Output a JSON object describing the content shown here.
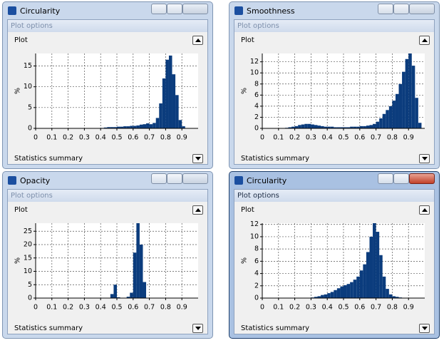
{
  "windows": [
    {
      "title": "Circularity",
      "options": "Plot options",
      "panel": "Plot",
      "footer": "Statistics summary"
    },
    {
      "title": "Smoothness",
      "options": "Plot options",
      "panel": "Plot",
      "footer": "Statistics summary"
    },
    {
      "title": "Opacity",
      "options": "Plot options",
      "panel": "Plot",
      "footer": "Statistics summary"
    },
    {
      "title": "Circularity",
      "options": "Plot options",
      "panel": "Plot",
      "footer": "Statistics summary"
    }
  ],
  "chart_data": [
    {
      "type": "histogram",
      "ylabel": "%",
      "color": "#0b3c7d",
      "grid": true,
      "xlim": [
        0,
        1
      ],
      "ylim": [
        0,
        18
      ],
      "xticks": [
        0,
        0.1,
        0.2,
        0.3,
        0.4,
        0.5,
        0.6,
        0.7,
        0.8,
        0.9
      ],
      "yticks": [
        0,
        5,
        10,
        15
      ],
      "bins": [
        0.4,
        0.42,
        0.44,
        0.46,
        0.48,
        0.5,
        0.52,
        0.54,
        0.56,
        0.58,
        0.6,
        0.62,
        0.64,
        0.66,
        0.68,
        0.7,
        0.72,
        0.74,
        0.76,
        0.78,
        0.8,
        0.82,
        0.84,
        0.86,
        0.88,
        0.9,
        0.92
      ],
      "counts": [
        0.1,
        0.2,
        0.3,
        0.3,
        0.3,
        0.4,
        0.4,
        0.5,
        0.5,
        0.6,
        0.6,
        0.7,
        0.9,
        1.0,
        1.2,
        1.0,
        1.3,
        2.5,
        6,
        12,
        16.5,
        17.5,
        13,
        8,
        2,
        0.5
      ]
    },
    {
      "type": "histogram",
      "ylabel": "%",
      "color": "#0b3c7d",
      "grid": true,
      "xlim": [
        0,
        1
      ],
      "ylim": [
        0,
        13.5
      ],
      "xticks": [
        0,
        0.1,
        0.2,
        0.3,
        0.4,
        0.5,
        0.6,
        0.7,
        0.8,
        0.9
      ],
      "yticks": [
        0,
        2,
        4,
        6,
        8,
        10,
        12
      ],
      "bins": [
        0.14,
        0.16,
        0.18,
        0.2,
        0.22,
        0.24,
        0.26,
        0.28,
        0.3,
        0.32,
        0.34,
        0.36,
        0.38,
        0.4,
        0.42,
        0.44,
        0.46,
        0.48,
        0.5,
        0.52,
        0.54,
        0.56,
        0.58,
        0.6,
        0.62,
        0.64,
        0.66,
        0.68,
        0.7,
        0.72,
        0.74,
        0.76,
        0.78,
        0.8,
        0.82,
        0.84,
        0.86,
        0.88,
        0.9,
        0.92,
        0.94,
        0.96,
        0.98
      ],
      "counts": [
        0.1,
        0.2,
        0.3,
        0.4,
        0.6,
        0.7,
        0.8,
        0.8,
        0.7,
        0.6,
        0.5,
        0.4,
        0.3,
        0.3,
        0.3,
        0.2,
        0.2,
        0.2,
        0.2,
        0.2,
        0.3,
        0.3,
        0.3,
        0.4,
        0.4,
        0.5,
        0.6,
        0.8,
        1.2,
        1.8,
        2.6,
        3.3,
        4.0,
        5.0,
        6.2,
        8.0,
        10.2,
        12.5,
        13.5,
        11.3,
        5.5,
        1.0
      ]
    },
    {
      "type": "histogram",
      "ylabel": "%",
      "color": "#0b3c7d",
      "grid": true,
      "xlim": [
        0,
        1
      ],
      "ylim": [
        0,
        28
      ],
      "xticks": [
        0,
        0.1,
        0.2,
        0.3,
        0.4,
        0.5,
        0.6,
        0.7,
        0.8,
        0.9
      ],
      "yticks": [
        0,
        5,
        10,
        15,
        20,
        25
      ],
      "bins": [
        0.46,
        0.48,
        0.5,
        0.52,
        0.54,
        0.56,
        0.58,
        0.6,
        0.62,
        0.64,
        0.66,
        0.68
      ],
      "counts": [
        1.5,
        5,
        0.3,
        0,
        0,
        0.5,
        2,
        17,
        28,
        20,
        6
      ]
    },
    {
      "type": "histogram",
      "ylabel": "%",
      "color": "#0b3c7d",
      "grid": true,
      "xlim": [
        0,
        1
      ],
      "ylim": [
        0,
        12.2
      ],
      "xticks": [
        0,
        0.1,
        0.2,
        0.3,
        0.4,
        0.5,
        0.6,
        0.7,
        0.8,
        0.9
      ],
      "yticks": [
        0,
        2,
        4,
        6,
        8,
        10,
        12
      ],
      "bins": [
        0.3,
        0.32,
        0.34,
        0.36,
        0.38,
        0.4,
        0.42,
        0.44,
        0.46,
        0.48,
        0.5,
        0.52,
        0.54,
        0.56,
        0.58,
        0.6,
        0.62,
        0.64,
        0.66,
        0.68,
        0.7,
        0.72,
        0.74,
        0.76,
        0.78,
        0.8,
        0.82,
        0.84,
        0.86,
        0.88
      ],
      "counts": [
        0.1,
        0.2,
        0.3,
        0.5,
        0.6,
        0.8,
        1.0,
        1.3,
        1.6,
        1.9,
        2.1,
        2.3,
        2.6,
        3.0,
        3.5,
        4.5,
        5.5,
        7.5,
        10,
        12.2,
        10.8,
        7,
        3.5,
        1.5,
        0.6,
        0.3,
        0.2,
        0.1,
        0.05
      ]
    }
  ]
}
